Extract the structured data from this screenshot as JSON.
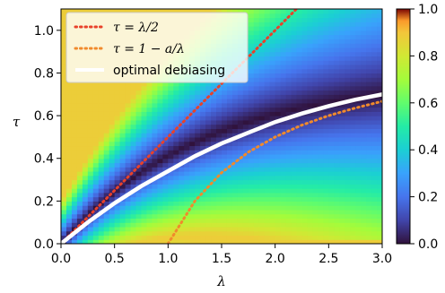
{
  "chart_data": {
    "type": "heatmap",
    "xlabel": "λ",
    "ylabel": "τ",
    "xlim": [
      0.0,
      3.0
    ],
    "ylim": [
      0.0,
      1.1
    ],
    "x_ticks": [
      "0.0",
      "0.5",
      "1.0",
      "1.5",
      "2.0",
      "2.5",
      "3.0"
    ],
    "y_ticks": [
      "0.0",
      "0.2",
      "0.4",
      "0.6",
      "0.8",
      "1.0"
    ],
    "colorbar": {
      "range": [
        0.0,
        1.0
      ],
      "ticks": [
        "0.0",
        "0.2",
        "0.4",
        "0.6",
        "0.8",
        "1.0"
      ],
      "colormap": "turbo"
    },
    "legend_position": "top-left",
    "series": [
      {
        "name": "τ = λ/2",
        "legend_parts": [
          "τ = ",
          "λ",
          "/2"
        ],
        "color": "#e8412a",
        "style": "dotted",
        "x": [
          0.0,
          0.5,
          1.0,
          1.5,
          2.0,
          2.2
        ],
        "y": [
          0.0,
          0.25,
          0.5,
          0.75,
          1.0,
          1.1
        ]
      },
      {
        "name": "τ = 1 − a/λ",
        "legend_parts": [
          "τ = 1 − ",
          "a",
          "/",
          "λ"
        ],
        "color": "#f08a2c",
        "style": "dotted",
        "x": [
          1.0,
          1.25,
          1.5,
          1.75,
          2.0,
          2.25,
          2.5,
          2.75,
          3.0
        ],
        "y": [
          0.0,
          0.2,
          0.333,
          0.429,
          0.5,
          0.556,
          0.6,
          0.636,
          0.667
        ]
      },
      {
        "name": "optimal debiasing",
        "color": "#ffffff",
        "style": "solid",
        "x": [
          0.0,
          0.25,
          0.5,
          0.75,
          1.0,
          1.25,
          1.5,
          1.75,
          2.0,
          2.25,
          2.5,
          2.75,
          3.0
        ],
        "y": [
          0.0,
          0.1,
          0.19,
          0.27,
          0.34,
          0.41,
          0.47,
          0.52,
          0.57,
          0.61,
          0.645,
          0.675,
          0.7
        ]
      }
    ]
  },
  "colors": {
    "background": "#ffffff",
    "frame": "#000000"
  }
}
